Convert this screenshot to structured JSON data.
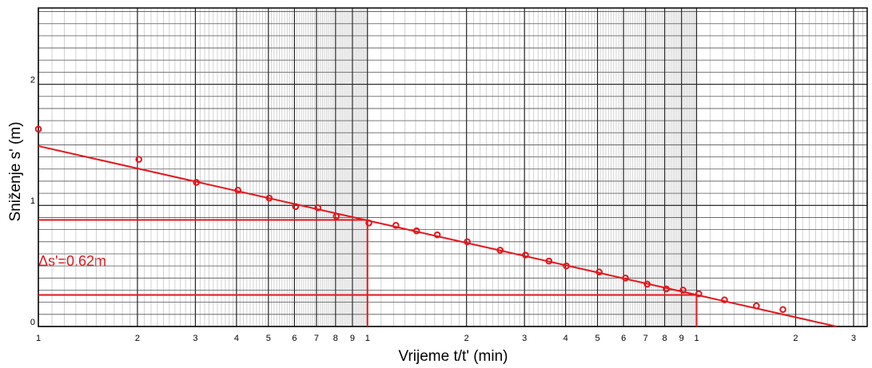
{
  "chart_data": {
    "type": "scatter",
    "x_label": "Vrijeme t/t' (min)",
    "y_label": "Sniženje s' (m)",
    "x_log": true,
    "grid": true,
    "xlim": [
      1,
      330
    ],
    "ylim": [
      0,
      2.63
    ],
    "xticks": [
      1,
      2,
      3,
      4,
      5,
      6,
      7,
      8,
      9,
      {
        "value": 10,
        "label": "1"
      },
      {
        "value": 20,
        "label": "2"
      },
      {
        "value": 30,
        "label": "3"
      },
      {
        "value": 40,
        "label": "4"
      },
      {
        "value": 50,
        "label": "5"
      },
      {
        "value": 60,
        "label": "6"
      },
      {
        "value": 70,
        "label": "7"
      },
      {
        "value": 80,
        "label": "8"
      },
      {
        "value": 90,
        "label": "9"
      },
      {
        "value": 100,
        "label": "1"
      },
      {
        "value": 200,
        "label": "2"
      },
      {
        "value": 300,
        "label": "3"
      }
    ],
    "yticks": [
      0,
      1,
      2
    ],
    "series": [
      {
        "color": "#e3161c",
        "x": [
          1,
          2.02,
          3.02,
          4.04,
          5.03,
          6.05,
          7.07,
          8.04,
          10.1,
          12.2,
          14.1,
          16.3,
          20.1,
          25.3,
          30.2,
          35.6,
          40.2,
          50.6,
          60.8,
          70.8,
          80.9,
          91,
          101.6,
          121.6,
          152,
          183
        ],
        "values": [
          1.63,
          1.38,
          1.19,
          1.125,
          1.06,
          0.99,
          0.98,
          0.91,
          0.855,
          0.835,
          0.79,
          0.757,
          0.7,
          0.63,
          0.59,
          0.54,
          0.5,
          0.45,
          0.4,
          0.35,
          0.31,
          0.3,
          0.27,
          0.22,
          0.17,
          0.14
        ]
      }
    ],
    "fit_line": {
      "color": "#e3161c",
      "x": [
        1,
        266
      ],
      "values": [
        1.49,
        0
      ]
    },
    "construction_lines": [
      {
        "x": 10,
        "y": 0.88
      },
      {
        "x": 100,
        "y": 0.26
      }
    ],
    "annotation": "Δs'=0.62m"
  }
}
